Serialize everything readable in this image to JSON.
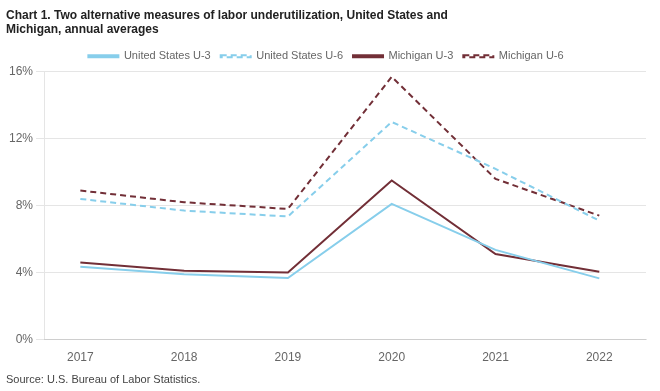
{
  "chart_data": {
    "type": "line",
    "title": [
      "Chart 1. Two alternative measures of labor underutilization, United States and",
      "Michigan, annual averages"
    ],
    "source": "Source: U.S. Bureau of Labor Statistics.",
    "x": [
      2017,
      2018,
      2019,
      2020,
      2021,
      2022
    ],
    "xlim": [
      2016.65,
      2022.45
    ],
    "xticks": [
      2017,
      2018,
      2019,
      2020,
      2021,
      2022
    ],
    "ylim": [
      0,
      16
    ],
    "yticks": [
      {
        "value": 0,
        "label": "0%"
      },
      {
        "value": 4,
        "label": "4%"
      },
      {
        "value": 8,
        "label": "8%"
      },
      {
        "value": 12,
        "label": "12%"
      },
      {
        "value": 16,
        "label": "16%"
      }
    ],
    "grid": "y",
    "legend": "top",
    "series": [
      {
        "name": "United States U-3",
        "color": "#87CEEB",
        "line_style": "solid",
        "values": [
          4.35,
          3.9,
          3.67,
          8.1,
          5.35,
          3.65
        ]
      },
      {
        "name": "United States U-6",
        "color": "#87CEEB",
        "line_style": "dashed",
        "values": [
          8.4,
          7.7,
          7.35,
          13.0,
          10.2,
          7.1
        ]
      },
      {
        "name": "Michigan U-3",
        "color": "#722F37",
        "line_style": "solid",
        "values": [
          4.6,
          4.1,
          4.0,
          9.5,
          5.1,
          4.05
        ]
      },
      {
        "name": "Michigan U-6",
        "color": "#722F37",
        "line_style": "dashed",
        "values": [
          8.9,
          8.2,
          7.8,
          15.7,
          9.6,
          7.4
        ]
      }
    ]
  }
}
